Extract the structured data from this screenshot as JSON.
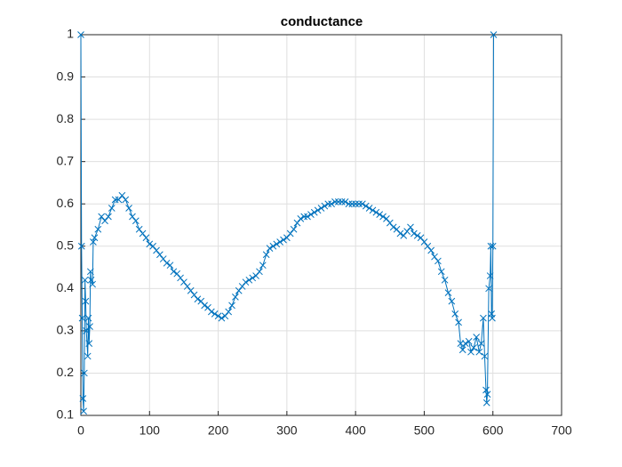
{
  "chart_data": {
    "type": "line",
    "title": "conductance",
    "x": [
      0,
      1,
      2,
      3,
      4,
      5,
      6,
      7,
      8,
      10,
      11,
      12,
      13,
      14,
      15,
      17,
      18,
      20,
      25,
      30,
      35,
      40,
      45,
      50,
      55,
      60,
      65,
      70,
      75,
      80,
      85,
      90,
      95,
      100,
      105,
      110,
      115,
      120,
      125,
      130,
      135,
      140,
      145,
      150,
      155,
      160,
      165,
      170,
      175,
      180,
      185,
      190,
      195,
      200,
      205,
      210,
      215,
      220,
      225,
      230,
      235,
      240,
      245,
      250,
      255,
      260,
      265,
      270,
      275,
      280,
      285,
      290,
      295,
      300,
      305,
      310,
      315,
      320,
      325,
      330,
      335,
      340,
      345,
      350,
      355,
      360,
      365,
      370,
      375,
      380,
      385,
      390,
      395,
      400,
      405,
      410,
      415,
      420,
      425,
      430,
      435,
      440,
      445,
      450,
      455,
      460,
      465,
      470,
      475,
      480,
      485,
      490,
      495,
      500,
      505,
      510,
      515,
      520,
      525,
      530,
      535,
      540,
      545,
      550,
      553,
      556,
      560,
      565,
      568,
      572,
      576,
      580,
      583,
      586,
      588,
      590,
      591,
      592,
      594,
      596,
      597,
      598,
      599,
      600,
      601
    ],
    "series": [
      {
        "color": "#0072bd",
        "values": [
          1,
          0.5,
          0.33,
          0.14,
          0.11,
          0.2,
          0.42,
          0.37,
          0.3,
          0.24,
          0.33,
          0.27,
          0.31,
          0.44,
          0.42,
          0.41,
          0.51,
          0.52,
          0.54,
          0.57,
          0.56,
          0.57,
          0.59,
          0.61,
          0.61,
          0.62,
          0.61,
          0.59,
          0.57,
          0.56,
          0.54,
          0.53,
          0.52,
          0.505,
          0.5,
          0.49,
          0.48,
          0.47,
          0.46,
          0.455,
          0.44,
          0.435,
          0.425,
          0.415,
          0.405,
          0.395,
          0.385,
          0.375,
          0.37,
          0.36,
          0.355,
          0.345,
          0.34,
          0.335,
          0.33,
          0.335,
          0.345,
          0.36,
          0.38,
          0.395,
          0.405,
          0.415,
          0.42,
          0.425,
          0.43,
          0.44,
          0.455,
          0.48,
          0.495,
          0.5,
          0.505,
          0.51,
          0.515,
          0.52,
          0.53,
          0.54,
          0.555,
          0.565,
          0.57,
          0.57,
          0.575,
          0.58,
          0.585,
          0.59,
          0.595,
          0.6,
          0.6,
          0.605,
          0.605,
          0.605,
          0.605,
          0.6,
          0.6,
          0.6,
          0.6,
          0.6,
          0.595,
          0.59,
          0.585,
          0.58,
          0.575,
          0.57,
          0.565,
          0.555,
          0.545,
          0.54,
          0.53,
          0.525,
          0.535,
          0.545,
          0.53,
          0.525,
          0.52,
          0.51,
          0.5,
          0.49,
          0.475,
          0.465,
          0.44,
          0.42,
          0.39,
          0.37,
          0.34,
          0.32,
          0.27,
          0.255,
          0.27,
          0.275,
          0.25,
          0.26,
          0.285,
          0.25,
          0.27,
          0.33,
          0.24,
          0.16,
          0.13,
          0.15,
          0.4,
          0.43,
          0.5,
          0.34,
          0.33,
          0.5,
          1
        ]
      }
    ],
    "xlim": [
      0,
      700
    ],
    "xticks": [
      0,
      100,
      200,
      300,
      400,
      500,
      600,
      700
    ],
    "ylim": [
      0.1,
      1
    ],
    "yticks": [
      0.1,
      0.2,
      0.3,
      0.4,
      0.5,
      0.6,
      0.7,
      0.8,
      0.9,
      1
    ],
    "grid": true
  }
}
